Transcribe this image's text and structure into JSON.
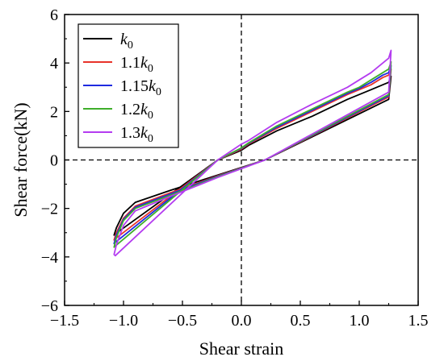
{
  "chart_data": {
    "type": "line",
    "xlabel": "Shear strain",
    "ylabel": "Shear force(kN)",
    "xlim": [
      -1.5,
      1.5
    ],
    "ylim": [
      -6,
      6
    ],
    "xticks": [
      -1.5,
      -1.0,
      -0.5,
      0.0,
      0.5,
      1.0,
      1.5
    ],
    "xtick_labels": [
      "−1.5",
      "−1.0",
      "−0.5",
      "0.0",
      "0.5",
      "1.0",
      "1.5"
    ],
    "yticks": [
      -6,
      -4,
      -2,
      0,
      2,
      4,
      6
    ],
    "ytick_labels": [
      "−6",
      "−4",
      "−2",
      "0",
      "2",
      "4",
      "6"
    ],
    "reference_lines": [
      "x=0 dashed",
      "y=0 dashed"
    ],
    "legend_position": "top-left",
    "series": [
      {
        "name": "k0",
        "legend_prefix": "",
        "legend_symbol": "k",
        "legend_sub": "0",
        "color": "#000000",
        "x": [
          0.0,
          0.06,
          0.3,
          0.6,
          0.9,
          1.0,
          1.1,
          1.2,
          1.25,
          1.27,
          1.25,
          0.2,
          -0.2,
          -0.6,
          -0.9,
          -1.0,
          -1.06,
          -1.08,
          -1.07,
          -0.2,
          0.0
        ],
        "y": [
          0.4,
          0.6,
          1.2,
          1.8,
          2.5,
          2.7,
          2.9,
          3.1,
          3.2,
          3.45,
          2.5,
          0.0,
          -0.62,
          -1.25,
          -1.75,
          -2.2,
          -2.8,
          -3.1,
          -3.05,
          0.0,
          0.4
        ]
      },
      {
        "name": "1.1k0",
        "legend_prefix": "1.1",
        "legend_symbol": "k",
        "legend_sub": "0",
        "color": "#e8332a",
        "x": [
          0.0,
          0.06,
          0.3,
          0.6,
          0.9,
          1.0,
          1.1,
          1.2,
          1.25,
          1.27,
          1.25,
          0.2,
          -0.2,
          -0.6,
          -0.9,
          -1.0,
          -1.06,
          -1.08,
          -1.07,
          -0.2,
          0.0
        ],
        "y": [
          0.45,
          0.65,
          1.3,
          2.0,
          2.7,
          2.9,
          3.1,
          3.4,
          3.5,
          3.75,
          2.6,
          0.0,
          -0.65,
          -1.35,
          -1.9,
          -2.4,
          -3.0,
          -3.3,
          -3.25,
          0.0,
          0.45
        ]
      },
      {
        "name": "1.15k0",
        "legend_prefix": "1.15",
        "legend_symbol": "k",
        "legend_sub": "0",
        "color": "#1f2be0",
        "x": [
          0.0,
          0.06,
          0.3,
          0.6,
          0.9,
          1.0,
          1.1,
          1.2,
          1.25,
          1.27,
          1.25,
          0.2,
          -0.2,
          -0.6,
          -0.9,
          -1.0,
          -1.06,
          -1.08,
          -1.07,
          -0.2,
          0.0
        ],
        "y": [
          0.48,
          0.68,
          1.35,
          2.05,
          2.75,
          2.95,
          3.2,
          3.5,
          3.6,
          3.9,
          2.65,
          0.0,
          -0.67,
          -1.4,
          -1.95,
          -2.45,
          -3.1,
          -3.45,
          -3.4,
          0.0,
          0.48
        ]
      },
      {
        "name": "1.2k0",
        "legend_prefix": "1.2",
        "legend_symbol": "k",
        "legend_sub": "0",
        "color": "#3fae2a",
        "x": [
          0.0,
          0.06,
          0.3,
          0.6,
          0.9,
          1.0,
          1.1,
          1.2,
          1.25,
          1.27,
          1.25,
          0.2,
          -0.2,
          -0.6,
          -0.9,
          -1.0,
          -1.06,
          -1.08,
          -1.07,
          -0.2,
          0.0
        ],
        "y": [
          0.5,
          0.7,
          1.4,
          2.1,
          2.8,
          3.0,
          3.3,
          3.6,
          3.75,
          4.05,
          2.7,
          0.0,
          -0.69,
          -1.45,
          -2.0,
          -2.5,
          -3.2,
          -3.6,
          -3.55,
          0.0,
          0.5
        ]
      },
      {
        "name": "1.3k0",
        "legend_prefix": "1.3",
        "legend_symbol": "k",
        "legend_sub": "0",
        "color": "#b43cf0",
        "x": [
          0.0,
          0.06,
          0.3,
          0.6,
          0.9,
          1.0,
          1.1,
          1.2,
          1.25,
          1.27,
          1.25,
          0.2,
          -0.2,
          -0.6,
          -0.9,
          -1.0,
          -1.06,
          -1.08,
          -1.07,
          -0.2,
          0.0
        ],
        "y": [
          0.65,
          0.8,
          1.55,
          2.3,
          3.0,
          3.3,
          3.6,
          4.0,
          4.2,
          4.52,
          2.8,
          0.0,
          -0.72,
          -1.5,
          -2.1,
          -2.7,
          -3.5,
          -3.9,
          -3.95,
          0.0,
          0.65
        ]
      }
    ]
  }
}
